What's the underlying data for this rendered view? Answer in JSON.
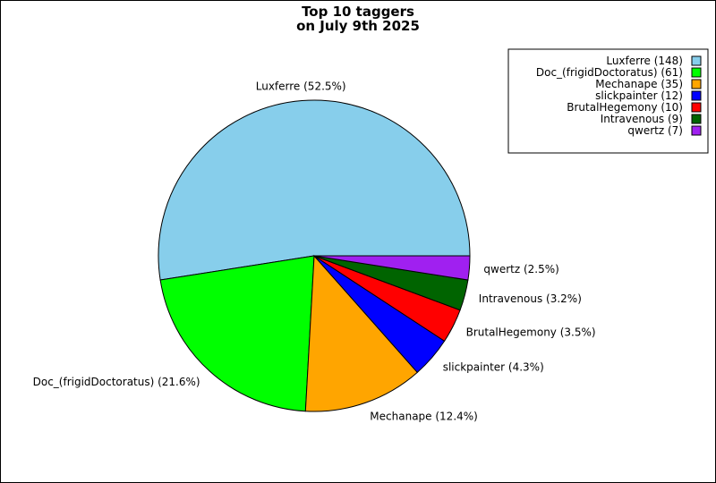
{
  "chart_data": {
    "type": "pie",
    "title": [
      "Top 10 taggers",
      "on July 9th 2025"
    ],
    "legend_position": "top-right",
    "slices": [
      {
        "name": "Luxferre",
        "count": 148,
        "percent": 52.5,
        "color": "#87ceeb",
        "legend": "Luxferre (148)",
        "label": "Luxferre (52.5%)"
      },
      {
        "name": "Doc_(frigidDoctoratus)",
        "count": 61,
        "percent": 21.6,
        "color": "#00ff00",
        "legend": "Doc_(frigidDoctoratus) (61)",
        "label": "Doc_(frigidDoctoratus) (21.6%)"
      },
      {
        "name": "Mechanape",
        "count": 35,
        "percent": 12.4,
        "color": "#ffa500",
        "legend": "Mechanape (35)",
        "label": "Mechanape (12.4%)"
      },
      {
        "name": "slickpainter",
        "count": 12,
        "percent": 4.3,
        "color": "#0000ff",
        "legend": "slickpainter (12)",
        "label": "slickpainter (4.3%)"
      },
      {
        "name": "BrutalHegemony",
        "count": 10,
        "percent": 3.5,
        "color": "#ff0000",
        "legend": "BrutalHegemony (10)",
        "label": "BrutalHegemony (3.5%)"
      },
      {
        "name": "Intravenous",
        "count": 9,
        "percent": 3.2,
        "color": "#006400",
        "legend": "Intravenous (9)",
        "label": "Intravenous (3.2%)"
      },
      {
        "name": "qwertz",
        "count": 7,
        "percent": 2.5,
        "color": "#a020f0",
        "legend": "qwertz (7)",
        "label": "qwertz (2.5%)"
      }
    ]
  }
}
